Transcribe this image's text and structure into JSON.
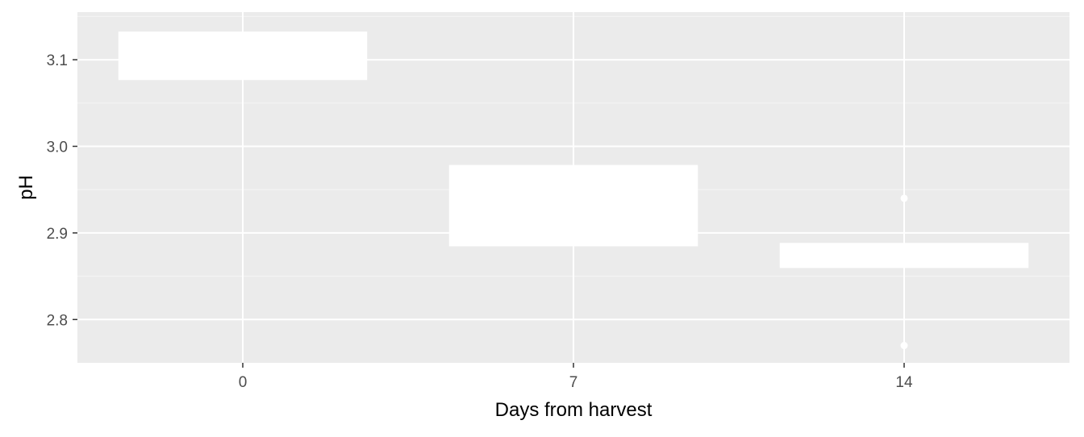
{
  "colors": {
    "panel_background": "#ebebeb",
    "grid_major": "#ffffff",
    "grid_minor": "#f5f5f5",
    "box_fill": "#ffffff",
    "box_stroke": "#ffffff",
    "tick_text": "#4d4d4d",
    "axis_title_text": "#000000"
  },
  "chart_data": {
    "type": "boxplot",
    "title": "",
    "xlabel": "Days from harvest",
    "ylabel": "pH",
    "categories": [
      "0",
      "7",
      "14"
    ],
    "ylim": [
      2.75,
      3.155
    ],
    "yticks": [
      2.8,
      2.9,
      3.0,
      3.1
    ],
    "ytick_labels": [
      "2.8",
      "2.9",
      "3.0",
      "3.1"
    ],
    "grid": true,
    "legend": "none",
    "boxes": [
      {
        "category": "0",
        "whisker_low": 3.07,
        "q1": 3.077,
        "median": 3.1,
        "q3": 3.132,
        "whisker_high": 3.14,
        "outliers": []
      },
      {
        "category": "7",
        "whisker_low": 2.83,
        "q1": 2.885,
        "median": 2.93,
        "q3": 2.978,
        "whisker_high": 3.04,
        "outliers": []
      },
      {
        "category": "14",
        "whisker_low": 2.86,
        "q1": 2.86,
        "median": 2.87,
        "q3": 2.888,
        "whisker_high": 2.89,
        "outliers": [
          2.94,
          2.77
        ]
      }
    ]
  }
}
